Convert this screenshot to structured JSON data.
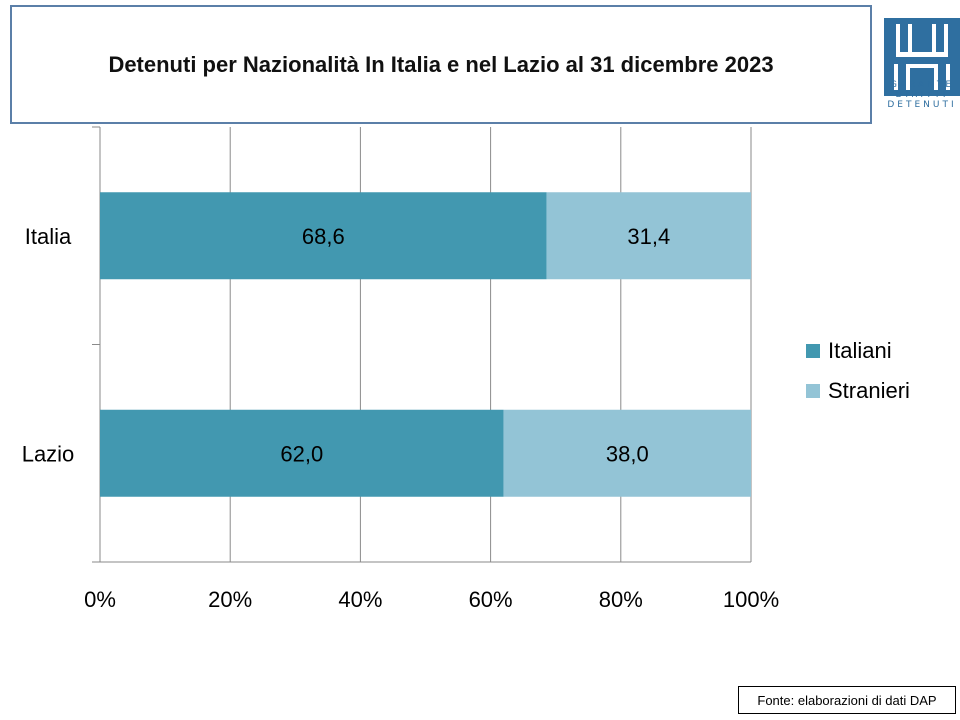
{
  "title": "Detenuti per Nazionalità In Italia e nel Lazio al 31 dicembre 2023",
  "logo": {
    "icon": "garante-logo-icon",
    "lines": [
      "GARANTE",
      "DIRITTI",
      "DETENUTI"
    ],
    "color": "#2f6fa0"
  },
  "source": "Fonte: elaborazioni di dati DAP",
  "chart_data": {
    "type": "bar",
    "orientation": "horizontal",
    "stacked": "percent",
    "categories": [
      "Italia",
      "Lazio"
    ],
    "series": [
      {
        "name": "Italiani",
        "values": [
          68.6,
          62.0
        ],
        "labels": [
          "68,6",
          "62,0"
        ],
        "color": "#4298b0"
      },
      {
        "name": "Stranieri",
        "values": [
          31.4,
          38.0
        ],
        "labels": [
          "31,4",
          "38,0"
        ],
        "color": "#93c4d6"
      }
    ],
    "xlim": [
      0,
      100
    ],
    "xticks": [
      "0%",
      "20%",
      "40%",
      "60%",
      "80%",
      "100%"
    ],
    "grid": "vertical",
    "legend": "right"
  }
}
